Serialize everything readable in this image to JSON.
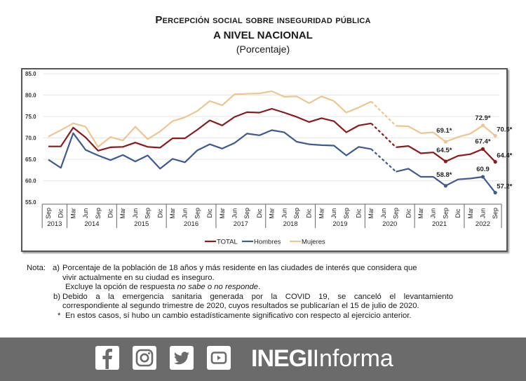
{
  "header": {
    "title_line1": "Percepción social sobre inseguridad pública",
    "title_line2": "A NIVEL NACIONAL",
    "subtitle": "(Porcentaje)"
  },
  "chart_data": {
    "type": "line",
    "title": "Percepción social sobre inseguridad pública a nivel nacional",
    "subtitle": "(Porcentaje)",
    "xlabel": "",
    "ylabel": "",
    "ylim": [
      55.0,
      85.0
    ],
    "yticks": [
      "55.0",
      "60.0",
      "65.0",
      "70.0",
      "75.0",
      "80.0",
      "85.0"
    ],
    "grid": true,
    "legend_position": "bottom",
    "x": [
      "Sep",
      "Dic",
      "Mar",
      "Jun",
      "Sep",
      "Dic",
      "Mar",
      "Jun",
      "Sep",
      "Dic",
      "Mar",
      "Jun",
      "Sep",
      "Dic",
      "Mar",
      "Jun",
      "Sep",
      "Dic",
      "Mar",
      "Jun",
      "Sep",
      "Dic",
      "Mar",
      "Jun",
      "Sep",
      "Dic",
      "Mar",
      "Jun",
      "Sep",
      "Dic",
      "Mar",
      "Jun",
      "Sep",
      "Dic",
      "Mar",
      "Jun",
      "Sep"
    ],
    "year_groups": [
      {
        "year": "2013",
        "count": 2
      },
      {
        "year": "2014",
        "count": 4
      },
      {
        "year": "2015",
        "count": 4
      },
      {
        "year": "2016",
        "count": 4
      },
      {
        "year": "2017",
        "count": 4
      },
      {
        "year": "2018",
        "count": 4
      },
      {
        "year": "2019",
        "count": 4
      },
      {
        "year": "2020",
        "count": 4
      },
      {
        "year": "2021",
        "count": 4
      },
      {
        "year": "2022",
        "count": 3
      }
    ],
    "missing_index": 27,
    "series": [
      {
        "name": "TOTAL",
        "color": "#8b1a1a",
        "values": [
          68.0,
          68.0,
          72.4,
          70.1,
          67.0,
          67.8,
          67.9,
          68.9,
          67.9,
          67.7,
          69.9,
          69.9,
          71.9,
          74.1,
          72.9,
          74.9,
          76.0,
          75.9,
          76.8,
          75.9,
          74.9,
          73.7,
          74.6,
          73.9,
          71.3,
          72.9,
          73.4,
          null,
          67.8,
          68.1,
          66.4,
          66.6,
          64.5,
          65.8,
          66.2,
          67.4,
          64.4
        ]
      },
      {
        "name": "Hombres",
        "color": "#3d5a91",
        "values": [
          64.9,
          63.0,
          71.1,
          67.2,
          65.9,
          64.8,
          66.0,
          64.5,
          65.9,
          62.8,
          65.1,
          64.3,
          67.1,
          68.5,
          67.5,
          68.8,
          71.0,
          70.6,
          71.8,
          71.3,
          69.1,
          68.5,
          68.3,
          68.2,
          65.9,
          67.9,
          67.4,
          null,
          62.1,
          62.8,
          60.9,
          60.9,
          58.8,
          60.3,
          60.5,
          60.9,
          57.2
        ]
      },
      {
        "name": "Mujeres",
        "color": "#f0c48e",
        "values": [
          70.3,
          71.8,
          73.4,
          72.6,
          67.9,
          70.2,
          69.4,
          72.6,
          69.7,
          71.5,
          73.9,
          74.8,
          76.3,
          78.6,
          77.6,
          80.2,
          80.3,
          80.4,
          80.9,
          79.6,
          79.7,
          78.1,
          79.7,
          78.6,
          75.9,
          77.1,
          78.5,
          null,
          72.8,
          72.7,
          71.1,
          71.3,
          69.1,
          70.2,
          71.0,
          72.9,
          70.5
        ]
      }
    ],
    "annotations": [
      {
        "series": "Mujeres",
        "index": 32,
        "text": "69.1*"
      },
      {
        "series": "Mujeres",
        "index": 35,
        "text": "72.9*"
      },
      {
        "series": "Mujeres",
        "index": 36,
        "text": "70.5*"
      },
      {
        "series": "TOTAL",
        "index": 32,
        "text": "64.5*"
      },
      {
        "series": "TOTAL",
        "index": 35,
        "text": "67.4*"
      },
      {
        "series": "TOTAL",
        "index": 36,
        "text": "64.4*"
      },
      {
        "series": "Hombres",
        "index": 32,
        "text": "58.8*"
      },
      {
        "series": "Hombres",
        "index": 35,
        "text": "60.9"
      },
      {
        "series": "Hombres",
        "index": 36,
        "text": "57.2*"
      }
    ]
  },
  "legend": [
    {
      "label": "TOTAL",
      "color": "#8b1a1a"
    },
    {
      "label": "Hombres",
      "color": "#3d5a91"
    },
    {
      "label": "Mujeres",
      "color": "#f0c48e"
    }
  ],
  "notes": {
    "prefix": "Nota:",
    "a_label": "a)",
    "a_line1": "Porcentaje de la población de 18 años y más residente en las ciudades de interés que considera que",
    "a_line2": "vivir actualmente en su ciudad es inseguro.",
    "a_line3_pre": "Excluye la opción de respuesta ",
    "a_line3_italic": "no sabe o no responde",
    "a_line3_post": ".",
    "b_label": "b)",
    "b_line1": "Debido a la emergencia sanitaria generada por la COVID 19, se canceló el levantamiento",
    "b_line2": "correspondiente al segundo trimestre de 2020, cuyos resultados se publicarían el 15 de julio de 2020.",
    "star_label": "*",
    "star_line": "En estos casos, sí hubo un cambio estadísticamente significativo con respecto al ejercicio anterior."
  },
  "footer": {
    "social_icons": [
      "facebook-icon",
      "instagram-icon",
      "twitter-icon",
      "youtube-icon"
    ],
    "brand_bold": "INEGI",
    "brand_light": "Informa",
    "background": "#6b6b6b"
  }
}
